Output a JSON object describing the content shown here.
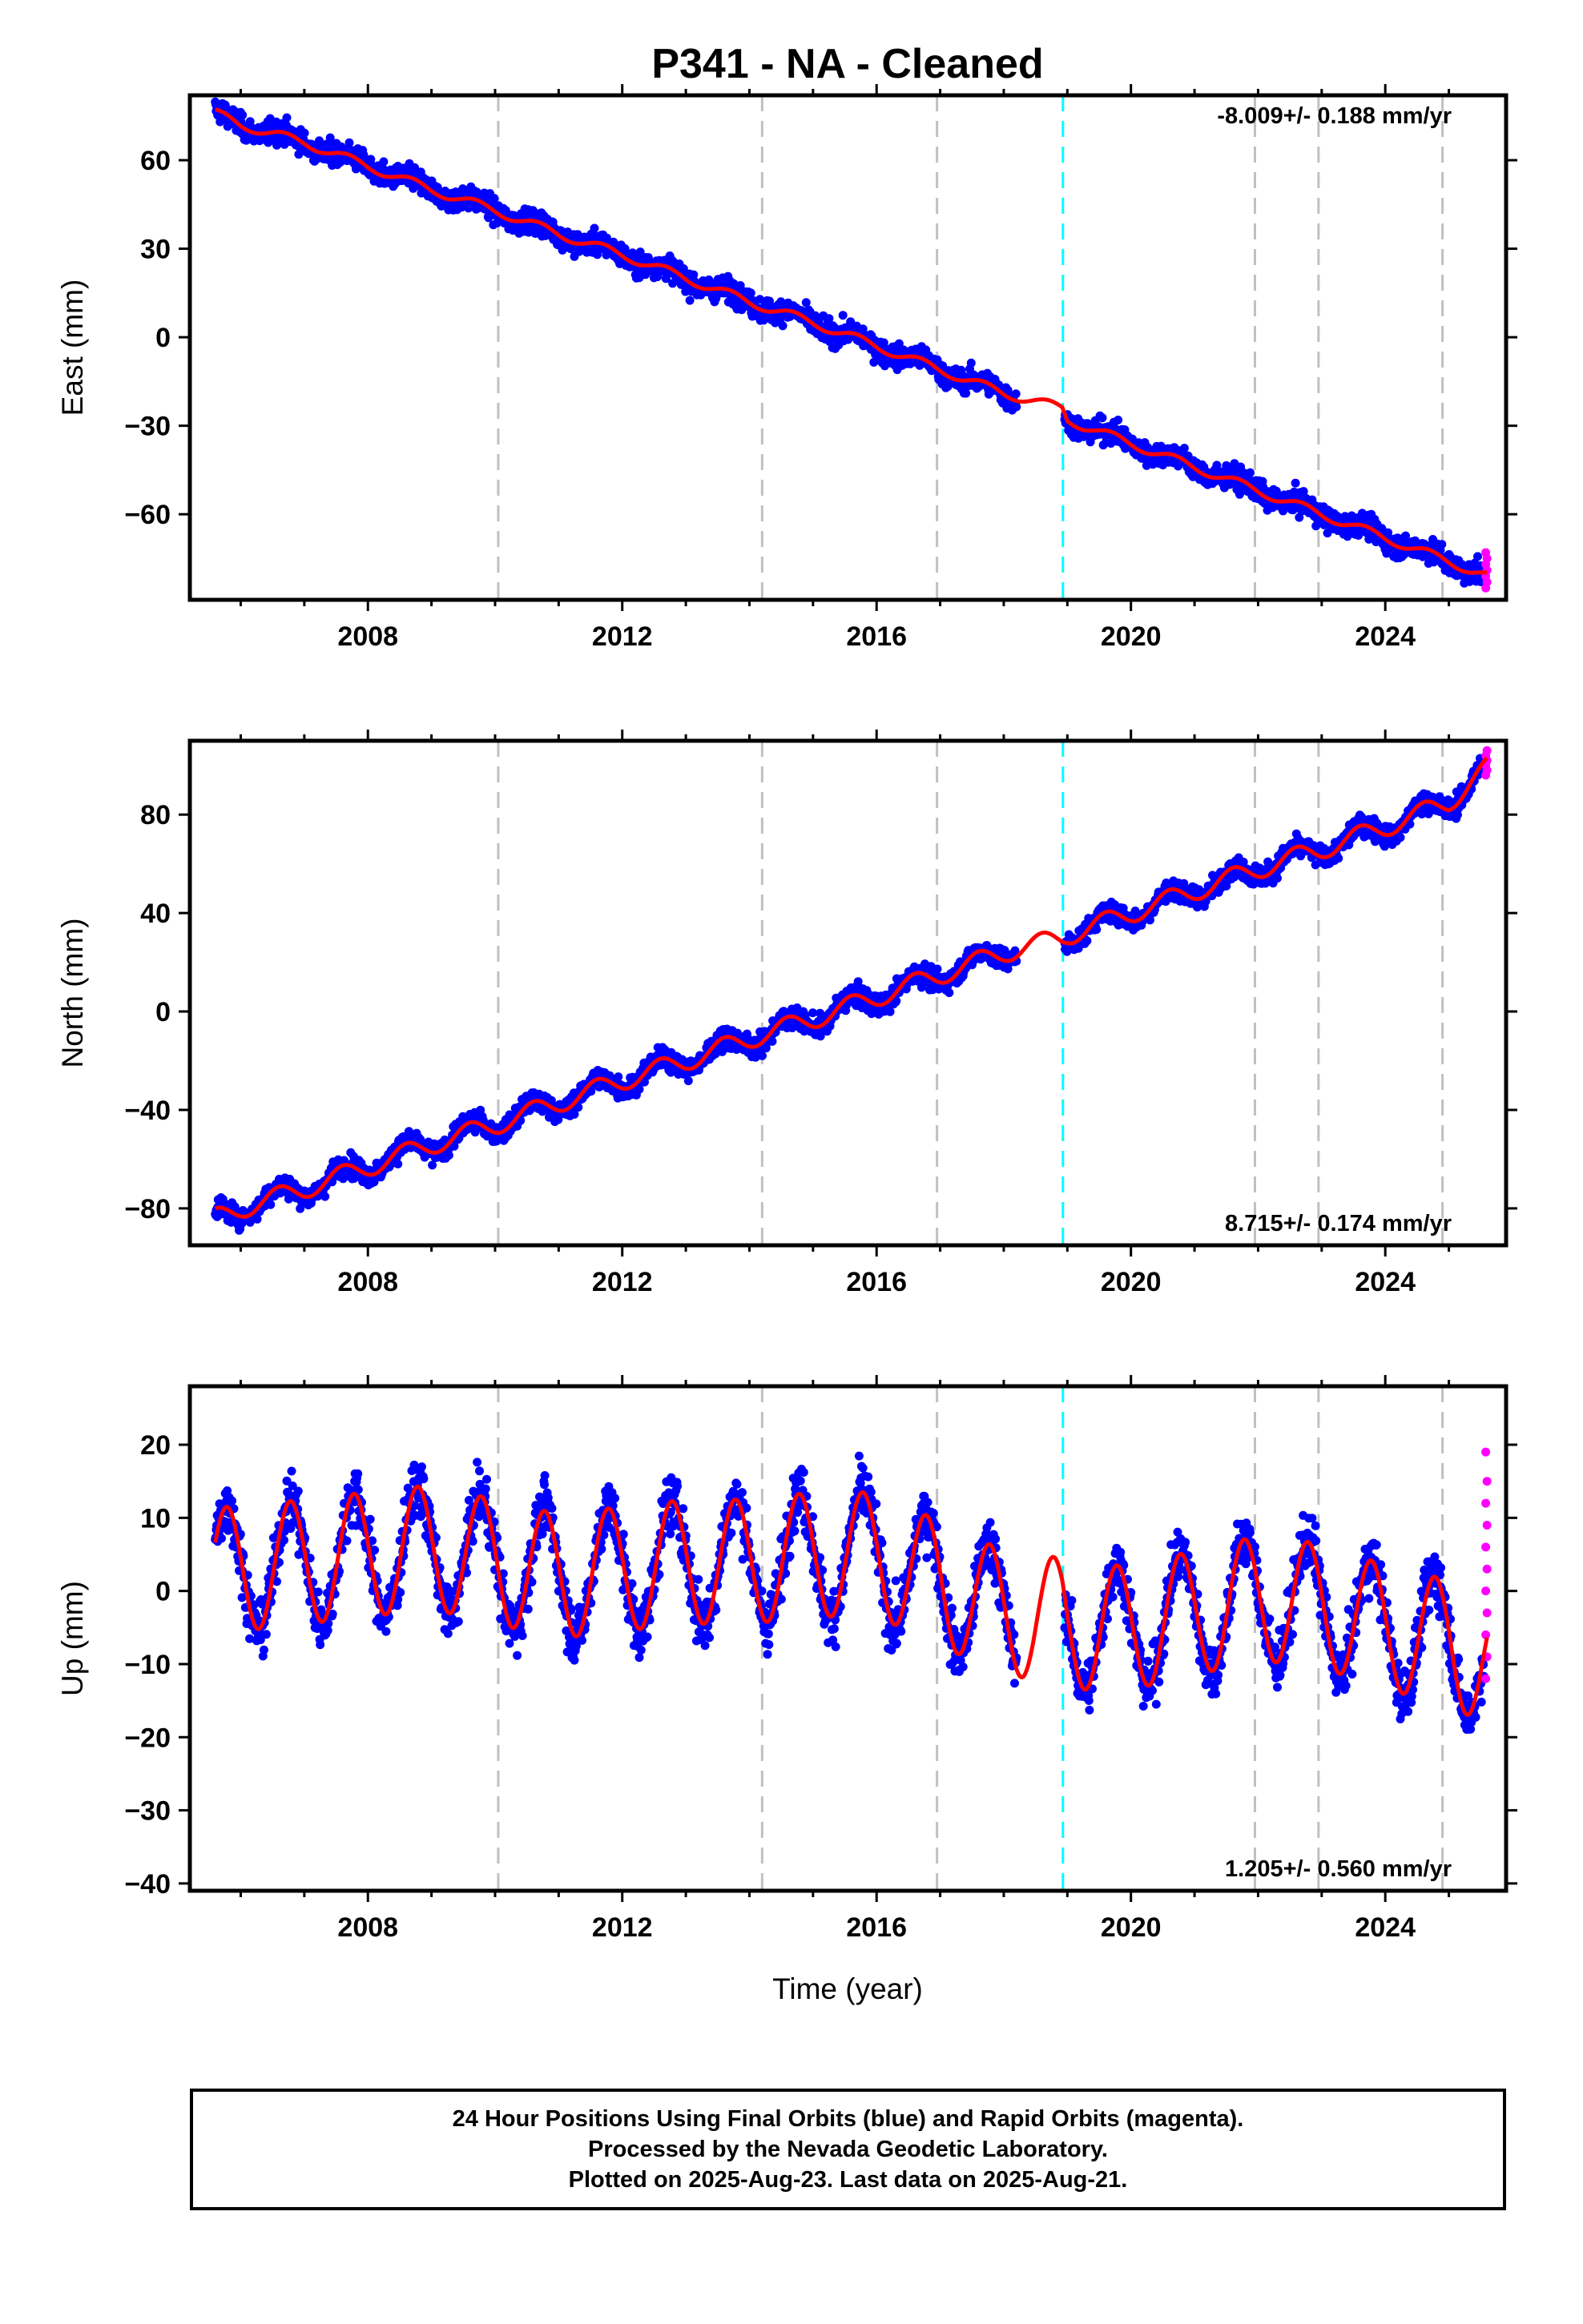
{
  "title": "P341  - NA - Cleaned",
  "xlabel": "Time (year)",
  "colors": {
    "final_orbits": "#0000ff",
    "rapid_orbits": "#ff00ff",
    "model": "#ff0000",
    "event_gray": "#c0c0c0",
    "event_cyan": "#00ffff"
  },
  "caption": {
    "line1": "24 Hour Positions Using Final Orbits (blue) and Rapid Orbits (magenta).",
    "line2": "Processed by the Nevada Geodetic Laboratory.",
    "line3": "Plotted on 2025-Aug-23. Last data on 2025-Aug-21."
  },
  "chart_data": [
    {
      "type": "scatter",
      "component": "east",
      "ylabel": "East (mm)",
      "rate_label": "-8.009+/- 0.188 mm/yr",
      "rate_position": "top-right",
      "xlim": [
        2005.2,
        2025.9
      ],
      "ylim": [
        -89,
        82
      ],
      "xticks": [
        2008,
        2012,
        2016,
        2020,
        2024
      ],
      "yticks": [
        -60,
        -30,
        0,
        30,
        60
      ],
      "grid": false,
      "event_lines_gray": [
        2010.05,
        2014.2,
        2016.95,
        2021.95,
        2022.95,
        2024.9
      ],
      "event_line_cyan": 2018.93,
      "model": {
        "x": [
          2005.6,
          2006.0,
          2007.0,
          2008.0,
          2009.0,
          2010.0,
          2011.0,
          2012.0,
          2013.0,
          2014.0,
          2015.0,
          2016.0,
          2017.0,
          2018.0,
          2018.92,
          2019.0,
          2020.0,
          2021.0,
          2022.0,
          2023.0,
          2024.0,
          2025.0,
          2025.6
        ],
        "y": [
          76,
          72,
          66,
          58,
          50,
          43,
          35,
          28,
          20,
          12,
          5,
          -3,
          -11,
          -19,
          -24,
          -28,
          -36,
          -44,
          -52,
          -60,
          -68,
          -76,
          -81
        ]
      },
      "seasonal": {
        "amp": 1.5,
        "peak": 0.7
      },
      "scatter": 4.5,
      "rapid_orbits": [
        -73,
        -75,
        -77,
        -79,
        -81,
        -83,
        -85
      ]
    },
    {
      "type": "scatter",
      "component": "north",
      "ylabel": "North (mm)",
      "rate_label": "8.715+/- 0.174 mm/yr",
      "rate_position": "bottom-right",
      "xlim": [
        2005.2,
        2025.9
      ],
      "ylim": [
        -95,
        110
      ],
      "xticks": [
        2008,
        2012,
        2016,
        2020,
        2024
      ],
      "yticks": [
        -80,
        -40,
        0,
        40,
        80
      ],
      "grid": false,
      "event_lines_gray": [
        2010.05,
        2014.2,
        2016.95,
        2021.95,
        2022.95,
        2024.9
      ],
      "event_line_cyan": 2018.93,
      "model": {
        "x": [
          2005.6,
          2006.0,
          2007.0,
          2008.0,
          2009.0,
          2010.0,
          2011.0,
          2012.0,
          2013.0,
          2014.0,
          2015.0,
          2016.0,
          2017.0,
          2018.0,
          2018.92,
          2019.0,
          2020.0,
          2021.0,
          2022.0,
          2023.0,
          2024.0,
          2025.0,
          2025.6
        ],
        "y": [
          -84,
          -80,
          -72,
          -63,
          -54,
          -46,
          -37,
          -28,
          -20,
          -11,
          -3,
          6,
          15,
          24,
          30,
          31,
          40,
          49,
          58,
          66,
          75,
          85,
          99
        ]
      },
      "seasonal": {
        "amp": 4,
        "peak": 0.6
      },
      "scatter": 5,
      "rapid_orbits": [
        96,
        98,
        100,
        102,
        104,
        106
      ]
    },
    {
      "type": "scatter",
      "component": "up",
      "ylabel": "Up (mm)",
      "rate_label": "1.205+/- 0.560 mm/yr",
      "rate_position": "bottom-right",
      "xlim": [
        2005.2,
        2025.9
      ],
      "ylim": [
        -41,
        28
      ],
      "xticks": [
        2008,
        2012,
        2016,
        2020,
        2024
      ],
      "yticks": [
        -40,
        -30,
        -20,
        -10,
        0,
        10,
        20
      ],
      "grid": false,
      "event_lines_gray": [
        2010.05,
        2014.2,
        2016.95,
        2021.95,
        2022.95,
        2024.9
      ],
      "event_line_cyan": 2018.93,
      "model": {
        "x": [
          2005.6,
          2006.0,
          2007.0,
          2008.0,
          2009.0,
          2010.0,
          2011.0,
          2012.0,
          2013.0,
          2014.0,
          2015.0,
          2016.0,
          2017.0,
          2018.0,
          2018.92,
          2019.0,
          2020.0,
          2021.0,
          2022.0,
          2023.0,
          2024.0,
          2025.0,
          2025.6
        ],
        "y": [
          3,
          3,
          4,
          5,
          6,
          4,
          2,
          3,
          4,
          4,
          5,
          5,
          1,
          -3,
          -4,
          -5,
          -5,
          -3,
          -1,
          -2,
          -5,
          -7,
          -10
        ]
      },
      "seasonal": {
        "amp": 8.5,
        "peak": 0.78
      },
      "scatter": 4.5,
      "rapid_orbits": [
        -12,
        -9,
        -6,
        -3,
        0,
        3,
        6,
        9,
        12,
        15,
        19
      ]
    }
  ]
}
